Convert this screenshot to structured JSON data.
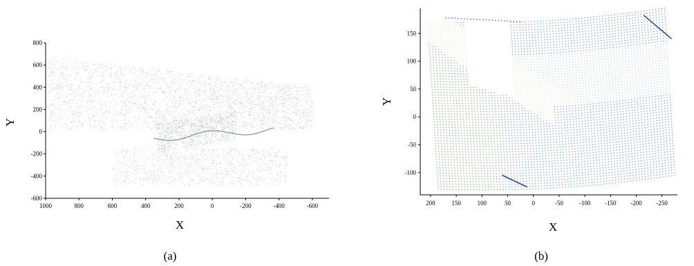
{
  "chart_data": [
    {
      "type": "scatter",
      "caption": "(a)",
      "xlabel": "X",
      "ylabel": "Y",
      "xlim": [
        1000,
        -700
      ],
      "ylim": [
        -600,
        800
      ],
      "x_reversed": true,
      "xticks": [
        "1000",
        "800",
        "600",
        "400",
        "200",
        "0",
        "-200",
        "-400",
        "-600"
      ],
      "yticks": [
        "800",
        "600",
        "400",
        "200",
        "0",
        "-200",
        "-400",
        "-600"
      ],
      "grid": false,
      "series": [
        {
          "values_description_color": "#9a9a9a",
          "regions": [
            {
              "x_range": [
                980,
                -600
              ],
              "y_range": [
                -120,
                680
              ]
            },
            {
              "x_range": [
                600,
                -450
              ],
              "y_range": [
                -480,
                -120
              ]
            },
            {
              "x_range": [
                350,
                -150
              ],
              "y_range": [
                -180,
                170
              ]
            }
          ]
        }
      ]
    },
    {
      "type": "scatter",
      "caption": "(b)",
      "xlabel": "X",
      "ylabel": "Y",
      "xlim": [
        220,
        -280
      ],
      "ylim": [
        -140,
        195
      ],
      "x_reversed": true,
      "xticks": [
        "200",
        "150",
        "100",
        "50",
        "0",
        "-50",
        "-100",
        "-150",
        "-200",
        "-250"
      ],
      "yticks": [
        "150",
        "100",
        "50",
        "0",
        "-50",
        "-100"
      ],
      "grid": false,
      "colormap": [
        "#2c3e8f",
        "#6aa0d8",
        "#bcd7e8",
        "#f0e6b8",
        "#7fb07a"
      ]
    }
  ]
}
